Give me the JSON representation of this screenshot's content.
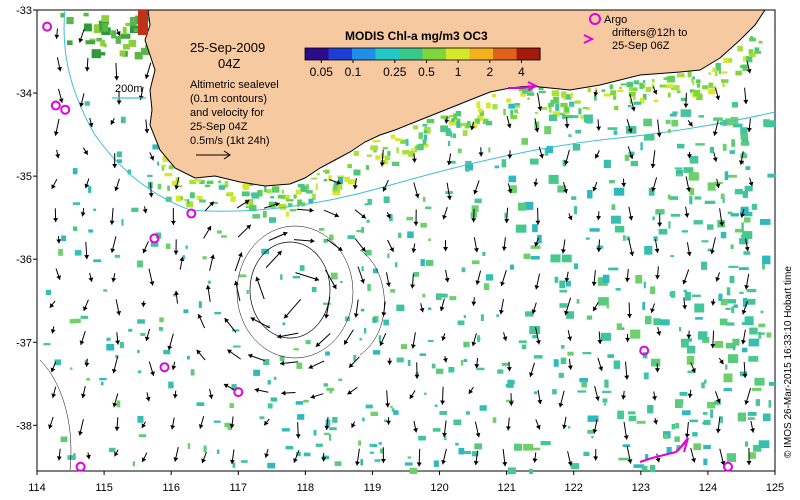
{
  "chart_data": {
    "type": "map",
    "title": "MODIS Chl-a mg/m3 OC3",
    "date": "25-Sep-2009",
    "time": "04Z",
    "xlabel": "",
    "ylabel": "",
    "x_ticks": [
      "114",
      "115",
      "116",
      "117",
      "118",
      "119",
      "120",
      "121",
      "122",
      "123",
      "124",
      "125"
    ],
    "y_ticks": [
      "-33",
      "-34",
      "-35",
      "-36",
      "-37",
      "-38"
    ],
    "xlim": [
      114,
      125
    ],
    "ylim": [
      -38.55,
      -33
    ],
    "colorbar": {
      "scale": "log",
      "range": [
        0.035,
        6
      ],
      "ticks": [
        "0.05",
        "0.1",
        "0.25",
        "0.5",
        "1",
        "2",
        "4"
      ],
      "colors": [
        "#2b0a8c",
        "#1e3fd6",
        "#1f8fe8",
        "#22c7c7",
        "#37c98a",
        "#7dd63c",
        "#d7e82a",
        "#f2b21e",
        "#e2611a",
        "#a61a0c"
      ]
    },
    "annotations": {
      "isobath": "200m",
      "sealevel": [
        "Altimetric sealevel",
        "(0.1m contours)",
        "and velocity for",
        "25-Sep 04Z"
      ],
      "scale_arrow": "0.5m/s (1kt 24h)",
      "argo": "Argo",
      "drifters": [
        "drifters@12h to",
        "25-Sep 06Z"
      ],
      "credit": "© IMOS 26-Mar-2015 16:33:10 Hobart time"
    },
    "argo_floats": [
      {
        "lon": 114.15,
        "lat": -33.2
      },
      {
        "lon": 114.28,
        "lat": -34.15
      },
      {
        "lon": 114.42,
        "lat": -34.2
      },
      {
        "lon": 115.75,
        "lat": -35.75
      },
      {
        "lon": 116.3,
        "lat": -35.45
      },
      {
        "lon": 115.9,
        "lat": -37.3
      },
      {
        "lon": 117.0,
        "lat": -37.6
      },
      {
        "lon": 114.65,
        "lat": -38.5
      },
      {
        "lon": 123.05,
        "lat": -37.1
      },
      {
        "lon": 124.3,
        "lat": -38.5
      }
    ],
    "colors": {
      "land": "#f6c9a0",
      "coast": "#000000",
      "isobath": "#3fbfd8",
      "argo": "#e000e0",
      "drifter": "#e000e0",
      "arrow": "#000000"
    }
  }
}
